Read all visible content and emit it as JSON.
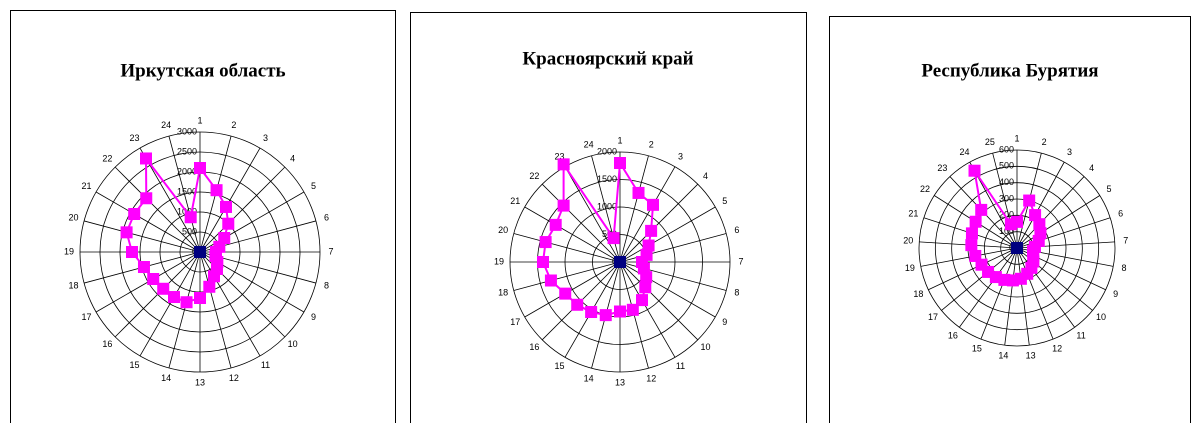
{
  "chart_data": [
    {
      "type": "radar",
      "title": "Иркутская область",
      "categories": [
        "1",
        "2",
        "3",
        "4",
        "5",
        "6",
        "7",
        "8",
        "9",
        "10",
        "11",
        "12",
        "13",
        "14",
        "15",
        "16",
        "17",
        "18",
        "19",
        "20",
        "21",
        "22",
        "23",
        "24"
      ],
      "series": [
        {
          "color": "#ff00ff",
          "values": [
            2100,
            1600,
            1300,
            1000,
            700,
            500,
            400,
            400,
            500,
            600,
            700,
            900,
            1150,
            1300,
            1300,
            1300,
            1350,
            1450,
            1700,
            1900,
            1900,
            1900,
            2700,
            900
          ]
        },
        {
          "color": "#000080",
          "values": [
            0,
            0,
            0,
            0,
            0,
            0,
            0,
            0,
            0,
            0,
            0,
            0,
            0,
            0,
            0,
            0,
            0,
            0,
            0,
            0,
            0,
            0,
            0,
            0
          ]
        }
      ],
      "rlim": [
        0,
        3000
      ],
      "rticks": [
        0,
        500,
        1000,
        1500,
        2000,
        2500,
        3000
      ]
    },
    {
      "type": "radar",
      "title": "Красноярский край",
      "categories": [
        "1",
        "2",
        "3",
        "4",
        "5",
        "6",
        "7",
        "8",
        "9",
        "10",
        "11",
        "12",
        "13",
        "14",
        "15",
        "16",
        "17",
        "18",
        "19",
        "20",
        "21",
        "22",
        "23",
        "24"
      ],
      "series": [
        {
          "color": "#ff00ff",
          "values": [
            1800,
            1300,
            1200,
            800,
            600,
            500,
            400,
            450,
            550,
            650,
            800,
            900,
            900,
            1000,
            1050,
            1100,
            1150,
            1300,
            1400,
            1400,
            1350,
            1450,
            2050,
            450
          ]
        },
        {
          "color": "#000080",
          "values": [
            0,
            0,
            0,
            0,
            0,
            0,
            0,
            0,
            0,
            0,
            0,
            0,
            0,
            0,
            0,
            0,
            0,
            0,
            0,
            0,
            0,
            0,
            0,
            0
          ]
        }
      ],
      "rlim": [
        0,
        2000
      ],
      "rticks": [
        0,
        500,
        1000,
        1500,
        2000
      ]
    },
    {
      "type": "radar",
      "title": "Республика Бурятия",
      "categories": [
        "1",
        "2",
        "3",
        "4",
        "5",
        "6",
        "7",
        "8",
        "9",
        "10",
        "11",
        "12",
        "13",
        "14",
        "15",
        "16",
        "17",
        "18",
        "19",
        "20",
        "21",
        "22",
        "23",
        "24",
        "25"
      ],
      "series": [
        {
          "color": "#ff00ff",
          "values": [
            160,
            300,
            230,
            200,
            170,
            140,
            110,
            100,
            110,
            130,
            150,
            170,
            190,
            200,
            210,
            220,
            230,
            240,
            260,
            280,
            290,
            300,
            320,
            540,
            150
          ]
        },
        {
          "color": "#000080",
          "values": [
            0,
            0,
            0,
            0,
            0,
            0,
            0,
            0,
            0,
            0,
            0,
            0,
            0,
            0,
            0,
            0,
            0,
            0,
            0,
            0,
            0,
            0,
            0,
            0,
            0
          ]
        }
      ],
      "rlim": [
        0,
        600
      ],
      "rticks": [
        0,
        100,
        200,
        300,
        400,
        500,
        600
      ]
    }
  ]
}
